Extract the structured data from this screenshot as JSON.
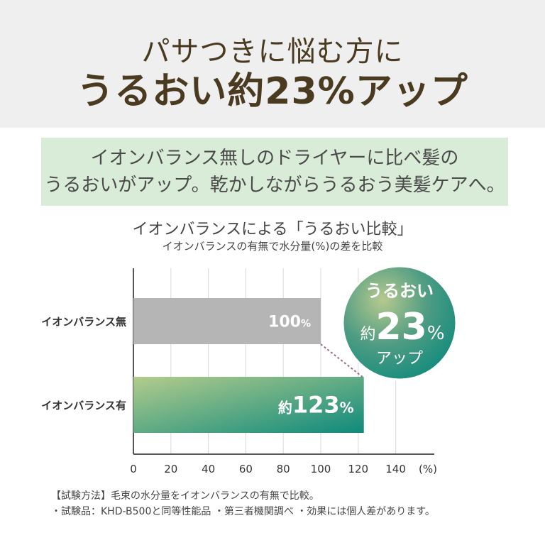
{
  "header": {
    "line1": "パサつきに悩む方に",
    "line2": "うるおい約23%アップ"
  },
  "intro": {
    "line1": "イオンバランス無しのドライヤーに比べ髪の",
    "line2": "うるおいがアップ。乾かしながらうるおう美髪ケアへ。"
  },
  "chart_data": {
    "type": "bar",
    "orientation": "horizontal",
    "title": "イオンバランスによる「うるおい比較」",
    "subtitle": "イオンバランスの有無で水分量(%)の差を比較",
    "categories": [
      "イオンバランス無",
      "イオンバランス有"
    ],
    "values": [
      100,
      123
    ],
    "data_labels": [
      {
        "prefix": "",
        "value": "100",
        "unit": "%"
      },
      {
        "prefix": "約",
        "value": "123",
        "unit": "%"
      }
    ],
    "xlim": [
      0,
      140
    ],
    "xticks": [
      "0",
      "20",
      "40",
      "60",
      "80",
      "100",
      "120",
      "140"
    ],
    "xunit": "(%)",
    "grid": true,
    "colors": {
      "bar1": "#b5b5b5",
      "bar2_start": "#b3cc8c",
      "bar2_end": "#0e8a7c"
    },
    "callout": {
      "line1": "うるおい",
      "prefix": "約",
      "value": "23",
      "unit": "%",
      "line3": "アップ"
    }
  },
  "notes": {
    "line1": "【試験方法】毛束の水分量をイオンバランスの有無で比較。",
    "line2": "・試験品：KHD-B500と同等性能品 ・第三者機関調べ ・効果には個人差があります。"
  }
}
